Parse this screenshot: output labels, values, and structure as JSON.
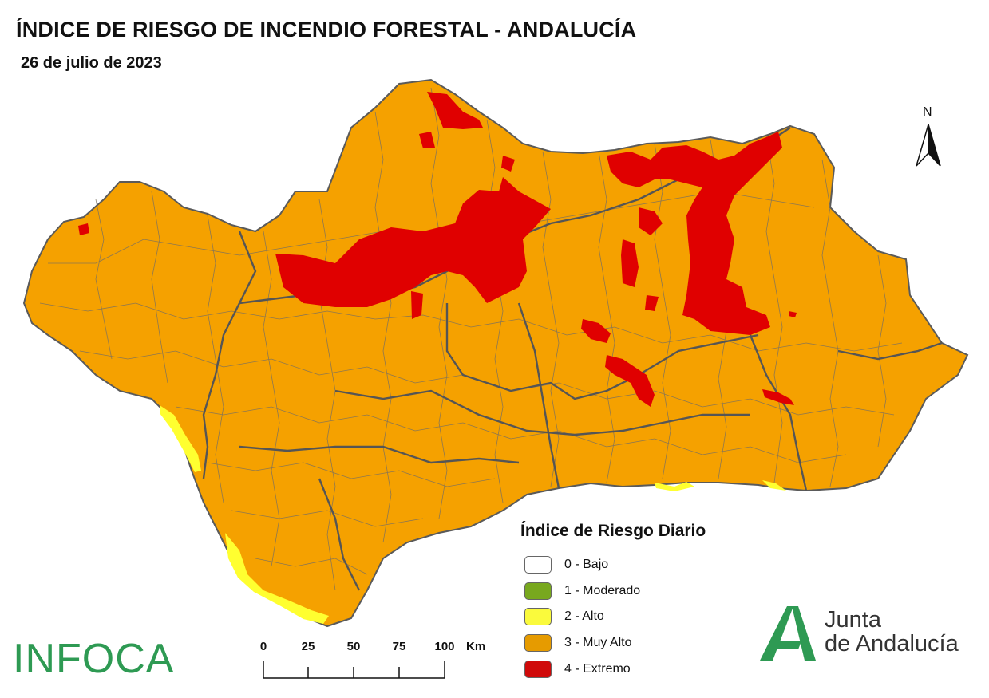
{
  "header": {
    "title": "ÍNDICE DE RIESGO DE INCENDIO FORESTAL - ANDALUCÍA",
    "date": "26 de julio de 2023"
  },
  "north_arrow": {
    "label": "N"
  },
  "legend": {
    "title": "Índice de Riesgo Diario",
    "items": [
      {
        "label": "0 - Bajo",
        "color": "#ffffff"
      },
      {
        "label": "1 - Moderado",
        "color": "#78a81e"
      },
      {
        "label": "2 - Alto",
        "color": "#fafa3c"
      },
      {
        "label": "3 - Muy Alto",
        "color": "#e69b00"
      },
      {
        "label": "4 - Extremo",
        "color": "#d00a0a"
      }
    ]
  },
  "scale": {
    "ticks": [
      "0",
      "25",
      "50",
      "75",
      "100"
    ],
    "unit": "Km"
  },
  "logos": {
    "infoca": "INFOCA",
    "junta_line1": "Junta",
    "junta_line2": "de Andalucía"
  },
  "colors": {
    "muy_alto_fill": "#f5a100",
    "extremo_fill": "#e00000",
    "alto_fill": "#ffff30",
    "boundary": "#555555",
    "brand_green": "#2e9a53"
  }
}
